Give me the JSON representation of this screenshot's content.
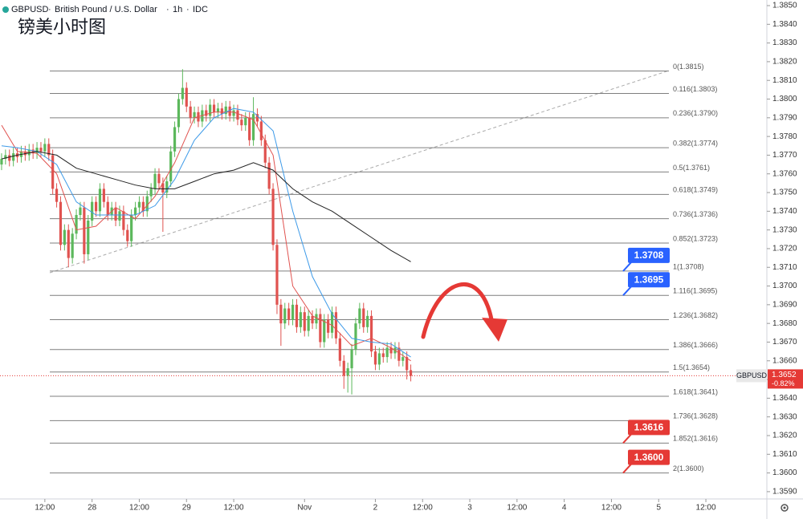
{
  "header": {
    "symbol": "GBPUSD",
    "name": "British Pound / U.S. Dollar",
    "interval": "1h",
    "source": "IDC"
  },
  "annotation": "镑美小时图",
  "chart_data": {
    "type": "candlestick",
    "up_color": "#5cb85c",
    "down_color": "#e0524f",
    "xlim": [
      0.6,
      195.5
    ],
    "ylim": [
      1.35861,
      1.3853
    ],
    "xticks": [
      {
        "value": 12,
        "label": "12:00"
      },
      {
        "value": 24,
        "label": "28"
      },
      {
        "value": 36,
        "label": "12:00"
      },
      {
        "value": 48,
        "label": "29"
      },
      {
        "value": 60,
        "label": "12:00"
      },
      {
        "value": 78,
        "label": "Nov"
      },
      {
        "value": 96,
        "label": "2"
      },
      {
        "value": 108,
        "label": "12:00"
      },
      {
        "value": 120,
        "label": "3"
      },
      {
        "value": 132,
        "label": "12:00"
      },
      {
        "value": 144,
        "label": "4"
      },
      {
        "value": 156,
        "label": "12:00"
      },
      {
        "value": 168,
        "label": "5"
      },
      {
        "value": 180,
        "label": "12:00"
      }
    ],
    "yticks": [
      {
        "value": 1.359,
        "label": "1.3590"
      },
      {
        "value": 1.36,
        "label": "1.3600"
      },
      {
        "value": 1.361,
        "label": "1.3610"
      },
      {
        "value": 1.362,
        "label": "1.3620"
      },
      {
        "value": 1.363,
        "label": "1.3630"
      },
      {
        "value": 1.364,
        "label": "1.3640"
      },
      {
        "value": 1.365,
        "label": "1.3650"
      },
      {
        "value": 1.366,
        "label": "1.3660"
      },
      {
        "value": 1.367,
        "label": "1.3670"
      },
      {
        "value": 1.368,
        "label": "1.3680"
      },
      {
        "value": 1.369,
        "label": "1.3690"
      },
      {
        "value": 1.37,
        "label": "1.3700"
      },
      {
        "value": 1.371,
        "label": "1.3710"
      },
      {
        "value": 1.372,
        "label": "1.3720"
      },
      {
        "value": 1.373,
        "label": "1.3730"
      },
      {
        "value": 1.374,
        "label": "1.3740"
      },
      {
        "value": 1.375,
        "label": "1.3750"
      },
      {
        "value": 1.376,
        "label": "1.3760"
      },
      {
        "value": 1.377,
        "label": "1.3770"
      },
      {
        "value": 1.378,
        "label": "1.3780"
      },
      {
        "value": 1.379,
        "label": "1.3790"
      },
      {
        "value": 1.38,
        "label": "1.3800"
      },
      {
        "value": 1.381,
        "label": "1.3810"
      },
      {
        "value": 1.382,
        "label": "1.3820"
      },
      {
        "value": 1.383,
        "label": "1.3830"
      },
      {
        "value": 1.384,
        "label": "1.3840"
      },
      {
        "value": 1.385,
        "label": "1.3850"
      }
    ],
    "x": [
      1,
      2,
      3,
      4,
      5,
      6,
      7,
      8,
      9,
      10,
      11,
      12,
      13,
      14,
      15,
      16,
      17,
      18,
      19,
      20,
      21,
      22,
      23,
      24,
      25,
      26,
      27,
      28,
      29,
      30,
      31,
      32,
      33,
      34,
      35,
      36,
      37,
      38,
      39,
      40,
      41,
      42,
      43,
      44,
      45,
      46,
      47,
      48,
      49,
      50,
      51,
      52,
      53,
      54,
      55,
      56,
      57,
      58,
      59,
      60,
      61,
      62,
      63,
      64,
      65,
      66,
      67,
      68,
      69,
      70,
      71,
      72,
      73,
      74,
      75,
      76,
      77,
      78,
      79,
      80,
      81,
      82,
      83,
      84,
      85,
      86,
      87,
      88,
      89,
      90,
      91,
      92,
      93,
      94,
      95,
      96,
      97,
      98,
      99,
      100,
      101,
      102,
      103,
      104,
      105
    ],
    "open": [
      1.3765,
      1.3768,
      1.377,
      1.3767,
      1.3771,
      1.3769,
      1.3772,
      1.377,
      1.3773,
      1.3771,
      1.3774,
      1.3772,
      1.3776,
      1.377,
      1.3752,
      1.3745,
      1.3722,
      1.373,
      1.3715,
      1.3728,
      1.3738,
      1.3742,
      1.3717,
      1.3735,
      1.3745,
      1.374,
      1.3752,
      1.3745,
      1.3738,
      1.3742,
      1.3735,
      1.374,
      1.373,
      1.3724,
      1.3738,
      1.3742,
      1.3745,
      1.374,
      1.3748,
      1.3752,
      1.376,
      1.3755,
      1.375,
      1.3756,
      1.3772,
      1.3785,
      1.38,
      1.3806,
      1.3796,
      1.379,
      1.3793,
      1.3788,
      1.3794,
      1.3791,
      1.3797,
      1.3793,
      1.3795,
      1.3792,
      1.3796,
      1.3791,
      1.3794,
      1.3789,
      1.3786,
      1.379,
      1.3778,
      1.3792,
      1.3788,
      1.3778,
      1.3766,
      1.3752,
      1.3722,
      1.369,
      1.368,
      1.3688,
      1.3682,
      1.369,
      1.3678,
      1.3686,
      1.3676,
      1.3684,
      1.368,
      1.3685,
      1.367,
      1.3682,
      1.3675,
      1.3686,
      1.3672,
      1.366,
      1.3652,
      1.3656,
      1.3666,
      1.368,
      1.3688,
      1.3678,
      1.3684,
      1.3665,
      1.3658,
      1.3664,
      1.3662,
      1.3667,
      1.3664,
      1.3667,
      1.366,
      1.3662,
      1.3655
    ],
    "high": [
      1.3771,
      1.3773,
      1.3773,
      1.3774,
      1.3774,
      1.3775,
      1.3775,
      1.3776,
      1.3776,
      1.3777,
      1.3777,
      1.3779,
      1.3779,
      1.3773,
      1.3755,
      1.3748,
      1.3733,
      1.3733,
      1.3731,
      1.3741,
      1.3745,
      1.3745,
      1.3738,
      1.3748,
      1.3748,
      1.3755,
      1.3755,
      1.3748,
      1.3745,
      1.3745,
      1.3743,
      1.3743,
      1.3733,
      1.3741,
      1.3745,
      1.3748,
      1.3748,
      1.3751,
      1.3755,
      1.3763,
      1.3763,
      1.3758,
      1.3759,
      1.3775,
      1.3788,
      1.3803,
      1.3816,
      1.3809,
      1.3799,
      1.3796,
      1.3796,
      1.3797,
      1.3797,
      1.38,
      1.38,
      1.3798,
      1.3798,
      1.3799,
      1.3799,
      1.3797,
      1.3797,
      1.3792,
      1.3793,
      1.3793,
      1.3801,
      1.3795,
      1.3791,
      1.3781,
      1.3769,
      1.3755,
      1.3725,
      1.3693,
      1.3691,
      1.3691,
      1.3693,
      1.3693,
      1.3689,
      1.3689,
      1.3687,
      1.3687,
      1.3688,
      1.3688,
      1.3685,
      1.3685,
      1.3689,
      1.3689,
      1.3675,
      1.3663,
      1.3659,
      1.3669,
      1.3683,
      1.3691,
      1.3691,
      1.3687,
      1.3687,
      1.3668,
      1.3667,
      1.3667,
      1.367,
      1.367,
      1.367,
      1.367,
      1.3665,
      1.3665,
      1.3658
    ],
    "low": [
      1.3762,
      1.3765,
      1.3764,
      1.3764,
      1.3766,
      1.3766,
      1.3767,
      1.3767,
      1.3768,
      1.3768,
      1.3769,
      1.3769,
      1.3767,
      1.3749,
      1.3742,
      1.3719,
      1.3719,
      1.371,
      1.3712,
      1.3725,
      1.3735,
      1.3712,
      1.3714,
      1.3732,
      1.3737,
      1.3737,
      1.3742,
      1.3735,
      1.3735,
      1.3732,
      1.3732,
      1.3727,
      1.3721,
      1.3721,
      1.3735,
      1.3739,
      1.3737,
      1.3737,
      1.3745,
      1.3749,
      1.3752,
      1.3729,
      1.3747,
      1.3753,
      1.3769,
      1.3782,
      1.3797,
      1.3793,
      1.3787,
      1.3787,
      1.3785,
      1.3785,
      1.3788,
      1.3788,
      1.379,
      1.379,
      1.3789,
      1.3789,
      1.3788,
      1.3788,
      1.3786,
      1.3783,
      1.3783,
      1.3775,
      1.3775,
      1.3785,
      1.3775,
      1.3763,
      1.3749,
      1.3719,
      1.3685,
      1.3668,
      1.3677,
      1.3679,
      1.3679,
      1.3675,
      1.3675,
      1.3673,
      1.3673,
      1.3677,
      1.3677,
      1.3667,
      1.3667,
      1.3672,
      1.3672,
      1.3669,
      1.3657,
      1.3645,
      1.3643,
      1.3642,
      1.3663,
      1.3677,
      1.3675,
      1.3675,
      1.3662,
      1.3655,
      1.3655,
      1.3659,
      1.3659,
      1.3661,
      1.3661,
      1.3657,
      1.3657,
      1.365,
      1.3649
    ],
    "close": [
      1.3768,
      1.377,
      1.3767,
      1.3771,
      1.3769,
      1.3772,
      1.377,
      1.3773,
      1.3771,
      1.3774,
      1.3772,
      1.3776,
      1.377,
      1.3752,
      1.3745,
      1.3722,
      1.373,
      1.3715,
      1.3728,
      1.3738,
      1.3742,
      1.3717,
      1.3735,
      1.3745,
      1.374,
      1.3752,
      1.3745,
      1.3738,
      1.3742,
      1.3735,
      1.374,
      1.373,
      1.3724,
      1.3738,
      1.3742,
      1.3745,
      1.374,
      1.3748,
      1.3752,
      1.376,
      1.3755,
      1.375,
      1.3756,
      1.3772,
      1.3785,
      1.38,
      1.3806,
      1.3796,
      1.379,
      1.3793,
      1.3788,
      1.3794,
      1.3791,
      1.3797,
      1.3793,
      1.3795,
      1.3792,
      1.3796,
      1.3791,
      1.3794,
      1.3789,
      1.3786,
      1.379,
      1.3778,
      1.3792,
      1.3788,
      1.3778,
      1.3766,
      1.3752,
      1.3722,
      1.369,
      1.368,
      1.3688,
      1.3682,
      1.369,
      1.3678,
      1.3686,
      1.3676,
      1.3684,
      1.368,
      1.3685,
      1.367,
      1.3682,
      1.3675,
      1.3686,
      1.3672,
      1.366,
      1.3652,
      1.3656,
      1.3666,
      1.368,
      1.3688,
      1.3678,
      1.3684,
      1.3665,
      1.3658,
      1.3664,
      1.3662,
      1.3667,
      1.3664,
      1.3667,
      1.366,
      1.3662,
      1.3655,
      1.3652
    ],
    "series": [
      {
        "color": "#e0524f",
        "x": [
          1,
          5,
          10,
          15,
          20,
          25,
          30,
          35,
          40,
          45,
          50,
          55,
          60,
          65,
          70,
          75,
          80,
          85,
          90,
          95,
          100,
          105
        ],
        "values": [
          1.3786,
          1.3772,
          1.3771,
          1.376,
          1.373,
          1.3732,
          1.3742,
          1.3736,
          1.3748,
          1.3766,
          1.379,
          1.3793,
          1.3793,
          1.3789,
          1.377,
          1.37,
          1.3684,
          1.3679,
          1.3668,
          1.3672,
          1.3667,
          1.366
        ]
      },
      {
        "color": "#3d9ae8",
        "x": [
          1,
          5,
          10,
          15,
          20,
          25,
          30,
          35,
          40,
          45,
          50,
          55,
          60,
          65,
          70,
          75,
          80,
          85,
          90,
          95,
          100,
          105
        ],
        "values": [
          1.3775,
          1.3774,
          1.3772,
          1.3765,
          1.3745,
          1.3738,
          1.3738,
          1.3738,
          1.3743,
          1.3757,
          1.3778,
          1.379,
          1.3795,
          1.3793,
          1.3783,
          1.374,
          1.3705,
          1.3685,
          1.3672,
          1.367,
          1.3669,
          1.3662
        ]
      },
      {
        "color": "#222222",
        "x": [
          1,
          5,
          10,
          15,
          20,
          25,
          30,
          35,
          40,
          45,
          50,
          55,
          60,
          65,
          70,
          75,
          80,
          85,
          90,
          95,
          100,
          105
        ],
        "values": [
          1.3768,
          1.377,
          1.3772,
          1.377,
          1.3763,
          1.376,
          1.3757,
          1.3754,
          1.3752,
          1.3752,
          1.3756,
          1.376,
          1.3762,
          1.3766,
          1.3762,
          1.3752,
          1.3745,
          1.374,
          1.3733,
          1.3726,
          1.3719,
          1.3713
        ]
      }
    ],
    "fib_color": "#7f7f7f",
    "fib_levels": [
      {
        "value": 1.3815,
        "label": "0(1.3815)"
      },
      {
        "value": 1.3803,
        "label": "0.116(1.3803)"
      },
      {
        "value": 1.379,
        "label": "0.236(1.3790)"
      },
      {
        "value": 1.3774,
        "label": "0.382(1.3774)"
      },
      {
        "value": 1.3761,
        "label": "0.5(1.3761)"
      },
      {
        "value": 1.3749,
        "label": "0.618(1.3749)"
      },
      {
        "value": 1.3736,
        "label": "0.736(1.3736)"
      },
      {
        "value": 1.3723,
        "label": "0.852(1.3723)"
      },
      {
        "value": 1.3708,
        "label": "1(1.3708)"
      },
      {
        "value": 1.3695,
        "label": "1.116(1.3695)"
      },
      {
        "value": 1.3682,
        "label": "1.236(1.3682)"
      },
      {
        "value": 1.3666,
        "label": "1.386(1.3666)"
      },
      {
        "value": 1.3654,
        "label": "1.5(1.3654)"
      },
      {
        "value": 1.3641,
        "label": "1.618(1.3641)"
      },
      {
        "value": 1.3628,
        "label": "1.736(1.3628)"
      },
      {
        "value": 1.3616,
        "label": "1.852(1.3616)"
      },
      {
        "value": 1.36,
        "label": "2(1.3600)"
      }
    ],
    "price_tags": [
      {
        "value": 1.3708,
        "label": "1.3708",
        "color": "#2962ff"
      },
      {
        "value": 1.3695,
        "label": "1.3695",
        "color": "#2962ff"
      },
      {
        "value": 1.3616,
        "label": "1.3616",
        "color": "#e53935"
      },
      {
        "value": 1.36,
        "label": "1.3600",
        "color": "#e53935"
      }
    ],
    "last_price": {
      "symbol": "GBPUSD",
      "value": 1.3652,
      "label": "1.3652",
      "change": "-0.82%",
      "color": "#e53935"
    }
  }
}
